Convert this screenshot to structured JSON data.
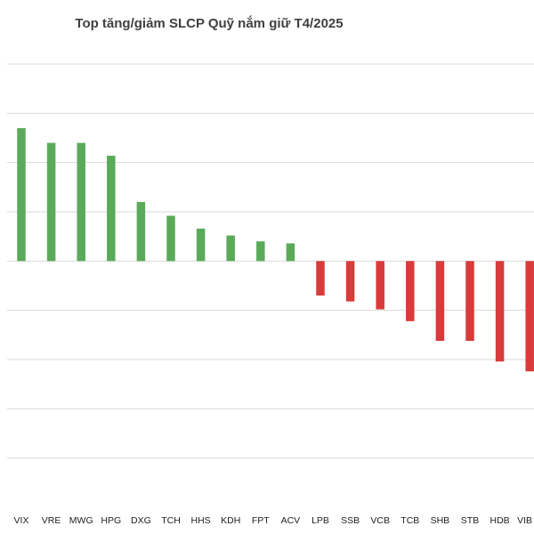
{
  "chart_data": {
    "type": "bar",
    "title": "Top tăng/giảm SLCP Quỹ nắm giữ T4/2025",
    "xlabel": "",
    "ylabel": "",
    "categories": [
      "VIX",
      "VRE",
      "MWG",
      "HPG",
      "DXG",
      "TCH",
      "HHS",
      "KDH",
      "FPT",
      "ACV",
      "LPB",
      "SSB",
      "VCB",
      "TCB",
      "SHB",
      "STB",
      "HDB",
      "VIB"
    ],
    "values": [
      135,
      120,
      120,
      107,
      60,
      46,
      33,
      26,
      20,
      18,
      -35,
      -41,
      -49,
      -61,
      -81,
      -81,
      -102,
      -112
    ],
    "ylim": [
      -250,
      200
    ],
    "grid": true,
    "legend": "none",
    "colors": {
      "positive": "#5aaa5a",
      "negative": "#d93a3a",
      "grid": "#d9d9d9"
    }
  }
}
